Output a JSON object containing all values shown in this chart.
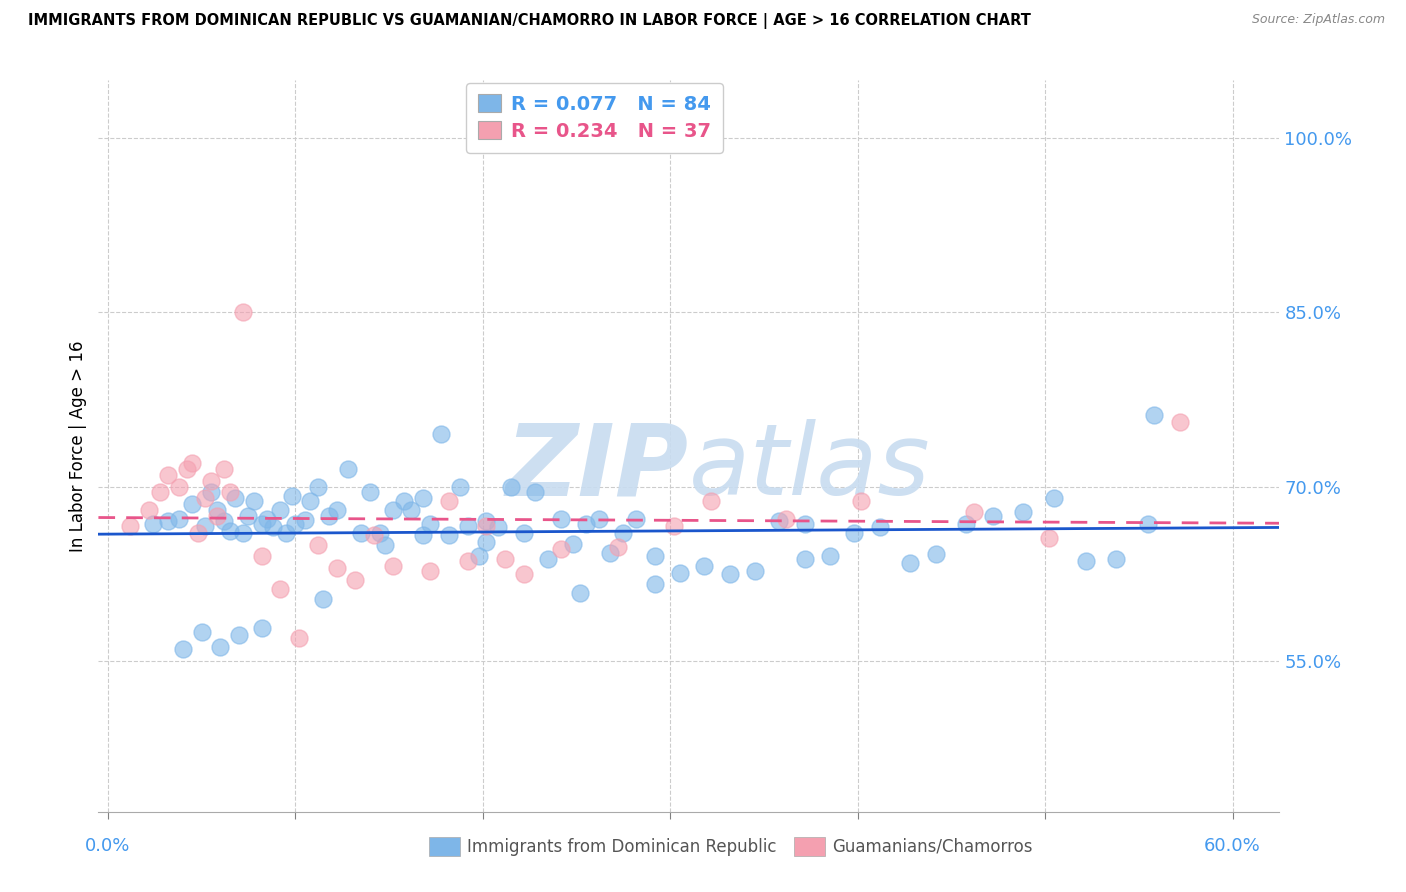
{
  "title": "IMMIGRANTS FROM DOMINICAN REPUBLIC VS GUAMANIAN/CHAMORRO IN LABOR FORCE | AGE > 16 CORRELATION CHART",
  "source": "Source: ZipAtlas.com",
  "ylabel": "In Labor Force | Age > 16",
  "y_tick_labels": [
    "100.0%",
    "85.0%",
    "70.0%",
    "55.0%"
  ],
  "y_tick_values": [
    1.0,
    0.85,
    0.7,
    0.55
  ],
  "x_tick_values": [
    0.0,
    0.1,
    0.2,
    0.3,
    0.4,
    0.5,
    0.6
  ],
  "ylim": [
    0.42,
    1.05
  ],
  "xlim": [
    -0.005,
    0.625
  ],
  "color_blue": "#7EB6E8",
  "color_pink": "#F4A0B0",
  "trend_blue": "#1A56CC",
  "trend_pink": "#E8558A",
  "watermark_color": "#C8DCF0",
  "axis_label_color": "#4499EE",
  "grid_color": "#CCCCCC",
  "blue_x": [
    0.024,
    0.032,
    0.038,
    0.045,
    0.052,
    0.055,
    0.058,
    0.062,
    0.065,
    0.068,
    0.072,
    0.075,
    0.078,
    0.082,
    0.085,
    0.088,
    0.092,
    0.095,
    0.098,
    0.1,
    0.105,
    0.108,
    0.112,
    0.118,
    0.122,
    0.128,
    0.135,
    0.14,
    0.145,
    0.148,
    0.152,
    0.158,
    0.162,
    0.168,
    0.172,
    0.178,
    0.182,
    0.188,
    0.192,
    0.198,
    0.202,
    0.208,
    0.215,
    0.222,
    0.228,
    0.235,
    0.242,
    0.248,
    0.255,
    0.262,
    0.268,
    0.275,
    0.282,
    0.292,
    0.305,
    0.318,
    0.332,
    0.345,
    0.358,
    0.372,
    0.385,
    0.398,
    0.412,
    0.428,
    0.442,
    0.458,
    0.472,
    0.488,
    0.505,
    0.522,
    0.538,
    0.555,
    0.04,
    0.05,
    0.06,
    0.07,
    0.082,
    0.115,
    0.168,
    0.202,
    0.252,
    0.292,
    0.372,
    0.558
  ],
  "blue_y": [
    0.668,
    0.67,
    0.672,
    0.685,
    0.666,
    0.695,
    0.68,
    0.67,
    0.662,
    0.69,
    0.66,
    0.675,
    0.688,
    0.668,
    0.672,
    0.665,
    0.68,
    0.66,
    0.692,
    0.668,
    0.671,
    0.688,
    0.7,
    0.675,
    0.68,
    0.715,
    0.66,
    0.695,
    0.66,
    0.65,
    0.68,
    0.688,
    0.68,
    0.69,
    0.668,
    0.745,
    0.658,
    0.7,
    0.666,
    0.64,
    0.67,
    0.665,
    0.7,
    0.66,
    0.695,
    0.638,
    0.672,
    0.651,
    0.668,
    0.672,
    0.643,
    0.66,
    0.672,
    0.64,
    0.626,
    0.632,
    0.625,
    0.627,
    0.67,
    0.668,
    0.64,
    0.66,
    0.665,
    0.634,
    0.642,
    0.668,
    0.675,
    0.678,
    0.69,
    0.636,
    0.638,
    0.668,
    0.56,
    0.575,
    0.562,
    0.572,
    0.578,
    0.603,
    0.658,
    0.652,
    0.608,
    0.616,
    0.638,
    0.762
  ],
  "pink_x": [
    0.012,
    0.022,
    0.028,
    0.032,
    0.038,
    0.042,
    0.045,
    0.048,
    0.052,
    0.055,
    0.058,
    0.062,
    0.065,
    0.072,
    0.082,
    0.092,
    0.102,
    0.112,
    0.122,
    0.132,
    0.142,
    0.152,
    0.172,
    0.182,
    0.192,
    0.202,
    0.212,
    0.222,
    0.242,
    0.272,
    0.302,
    0.322,
    0.362,
    0.402,
    0.462,
    0.502,
    0.572
  ],
  "pink_y": [
    0.666,
    0.68,
    0.695,
    0.71,
    0.7,
    0.715,
    0.72,
    0.66,
    0.69,
    0.705,
    0.675,
    0.715,
    0.695,
    0.85,
    0.64,
    0.612,
    0.57,
    0.65,
    0.63,
    0.62,
    0.658,
    0.632,
    0.627,
    0.688,
    0.636,
    0.666,
    0.638,
    0.625,
    0.646,
    0.648,
    0.666,
    0.688,
    0.672,
    0.688,
    0.678,
    0.656,
    0.756
  ],
  "legend_label1": "R = 0.077   N = 84",
  "legend_label2": "R = 0.234   N = 37",
  "bottom_label1": "Immigrants from Dominican Republic",
  "bottom_label2": "Guamanians/Chamorros"
}
